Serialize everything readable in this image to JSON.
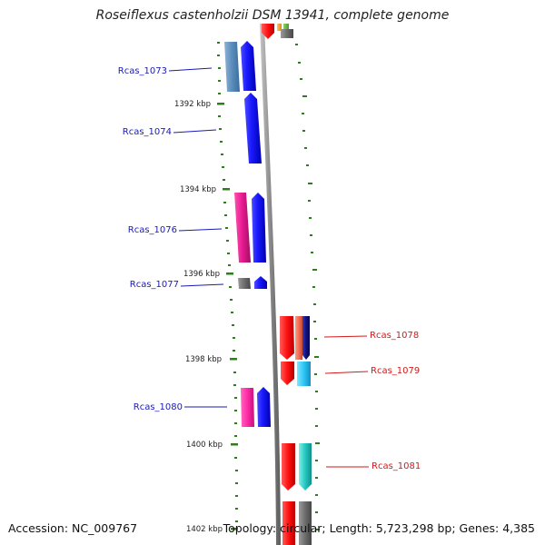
{
  "title": "Roseiflexus castenholzii DSM 13941, complete genome",
  "accession": "Accession: NC_009767",
  "summary": "Topology: circular; Length: 5,723,298 bp; Genes: 4,385",
  "colors": {
    "ruler_tick": "#2e7d1e",
    "backbone": "#8a8a8a",
    "left_label": "#1a1ab8",
    "right_label": "#d11a1a"
  },
  "ticks": [
    "1392 kbp",
    "1394 kbp",
    "1396 kbp",
    "1398 kbp",
    "1400 kbp",
    "1402 kbp"
  ],
  "labels_left": [
    "Rcas_1073",
    "Rcas_1074",
    "Rcas_1076",
    "Rcas_1077",
    "Rcas_1080"
  ],
  "labels_right": [
    "Rcas_1078",
    "Rcas_1079",
    "Rcas_1081"
  ]
}
